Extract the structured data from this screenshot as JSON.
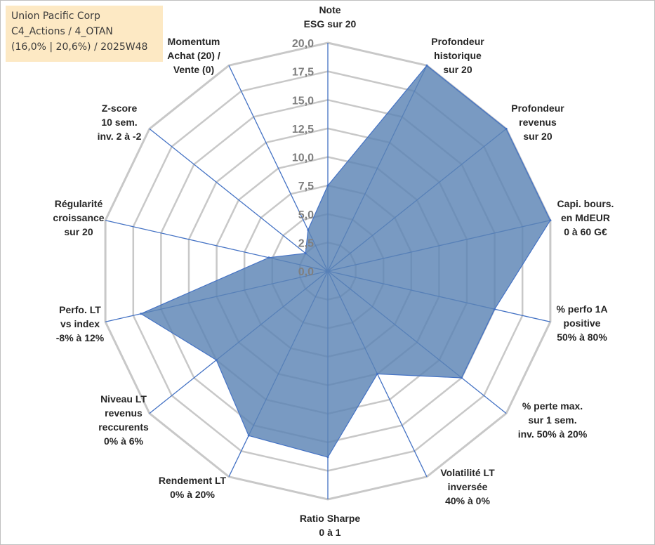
{
  "infobox": {
    "line1": "Union Pacific Corp",
    "line2": "C4_Actions / 4_OTAN",
    "line3": "(16,0% | 20,6%) / 2025W48"
  },
  "colors": {
    "fill": "#5b84b5",
    "edge": "#4472c4",
    "grid": "#c8c8c8",
    "spoke": "#4472c4",
    "infobox_bg": "#fde9c4"
  },
  "chart_data": {
    "type": "radar",
    "title": "",
    "rmax": 20,
    "tick_labels": [
      "0,0",
      "2,5",
      "5,0",
      "7,5",
      "10,0",
      "12,5",
      "15,0",
      "17,5",
      "20,0"
    ],
    "axes": [
      {
        "label": [
          "Note",
          "ESG sur 20"
        ],
        "value": 7.5
      },
      {
        "label": [
          "Profondeur",
          "historique",
          "sur 20"
        ],
        "value": 20
      },
      {
        "label": [
          "Profondeur",
          "revenus",
          "sur 20"
        ],
        "value": 20
      },
      {
        "label": [
          "Capi. bours.",
          "en MdEUR",
          "0 à 60 G€"
        ],
        "value": 20
      },
      {
        "label": [
          "% perfo 1A",
          "positive",
          "50% à 80%"
        ],
        "value": 15
      },
      {
        "label": [
          "% perte max.",
          "sur 1 sem.",
          "inv. 50% à 20%"
        ],
        "value": 15
      },
      {
        "label": [
          "Volatilité LT",
          "inversée",
          "40% à 0%"
        ],
        "value": 10
      },
      {
        "label": [
          "Ratio Sharpe",
          "0 à 1"
        ],
        "value": 16.3
      },
      {
        "label": [
          "Rendement LT",
          "0% à 20%"
        ],
        "value": 16
      },
      {
        "label": [
          "Niveau LT",
          "revenus",
          "reccurents",
          "0% à 6%"
        ],
        "value": 12.5
      },
      {
        "label": [
          "Perfo. LT",
          "vs index",
          "-8% à 12%"
        ],
        "value": 16.8
      },
      {
        "label": [
          "Régularité",
          "croissance",
          "sur 20"
        ],
        "value": 5.3
      },
      {
        "label": [
          "Z-score",
          "10 sem.",
          "inv. 2 à -2"
        ],
        "value": 2.5
      },
      {
        "label": [
          "Momentum",
          "Achat (20) /",
          "Vente (0)"
        ],
        "value": 4
      }
    ]
  }
}
